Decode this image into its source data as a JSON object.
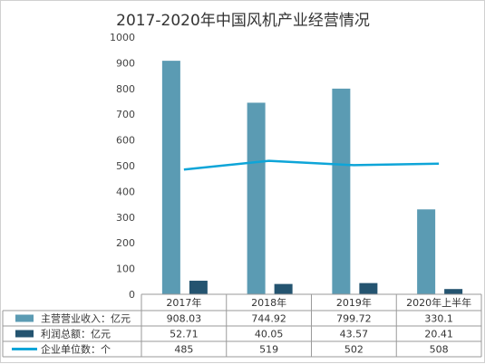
{
  "chart_data": {
    "type": "bar",
    "title": "2017-2020年中国风机产业经营情况",
    "categories": [
      "2017年",
      "2018年",
      "2019年",
      "2020年上半年"
    ],
    "ylim": [
      0,
      1000
    ],
    "yticks": [
      0,
      100,
      200,
      300,
      400,
      500,
      600,
      700,
      800,
      900,
      1000
    ],
    "grid": false,
    "legend": "bottom",
    "series": [
      {
        "name": "主营营业收入：亿元",
        "kind": "bar",
        "color": "#5b9bb3",
        "values": [
          908.03,
          744.92,
          799.72,
          330.1
        ],
        "labels": [
          "908.03",
          "744.92",
          "799.72",
          "330.1"
        ]
      },
      {
        "name": "利润总额：亿元",
        "kind": "bar",
        "color": "#245470",
        "values": [
          52.71,
          40.05,
          43.57,
          20.41
        ],
        "labels": [
          "52.71",
          "40.05",
          "43.57",
          "20.41"
        ]
      },
      {
        "name": "企业单位数：个",
        "kind": "line",
        "color": "#0ea5d8",
        "values": [
          485,
          519,
          502,
          508
        ],
        "labels": [
          "485",
          "519",
          "502",
          "508"
        ]
      }
    ]
  }
}
